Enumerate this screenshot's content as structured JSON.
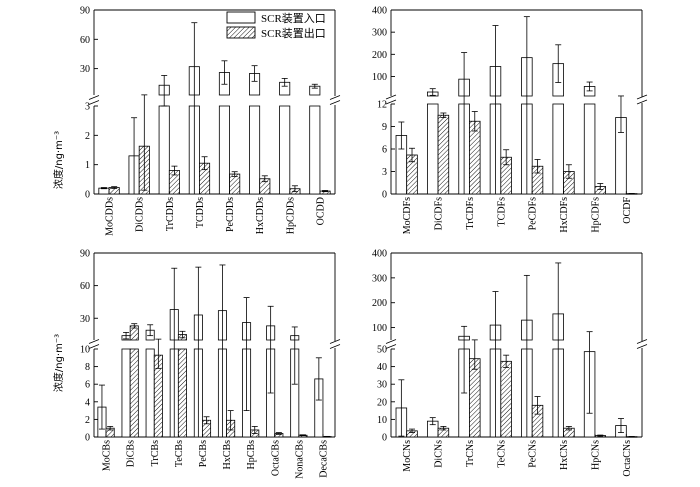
{
  "figure": {
    "ylabel": "浓度/ng·m⁻³",
    "colors": {
      "inlet_fill": "#ffffff",
      "outlet_hatch": "#000000",
      "axis": "#000000"
    }
  },
  "legend": {
    "inlet_label": "SCR装置入口",
    "outlet_label": "SCR装置出口"
  },
  "chart_data": [
    {
      "type": "bar",
      "panel": "top-left",
      "axis_break": true,
      "lower_ylim": [
        0,
        3
      ],
      "lower_ticks": [
        0,
        1,
        2,
        3
      ],
      "upper_ylim": [
        3,
        90
      ],
      "upper_ticks": [
        30,
        60,
        90
      ],
      "categories": [
        "MoCDDs",
        "DiCDDs",
        "TrCDDs",
        "TCDDs",
        "PeCDDs",
        "HxCDDs",
        "HpCDDs",
        "OCDD"
      ],
      "series": [
        {
          "name": "SCR装置入口",
          "values": [
            0.2,
            1.3,
            13,
            32,
            26,
            25,
            16,
            12
          ],
          "errors": [
            0.02,
            1.3,
            10,
            45,
            12,
            8,
            4,
            2
          ]
        },
        {
          "name": "SCR装置出口",
          "values": [
            0.22,
            1.63,
            0.8,
            1.05,
            0.68,
            0.52,
            0.18,
            0.1
          ],
          "errors": [
            0.03,
            1.5,
            0.15,
            0.22,
            0.08,
            0.1,
            0.1,
            0.02
          ]
        }
      ]
    },
    {
      "type": "bar",
      "panel": "top-right",
      "axis_break": true,
      "lower_ylim": [
        0,
        12
      ],
      "lower_ticks": [
        0,
        3,
        6,
        9,
        12
      ],
      "upper_ylim": [
        12,
        400
      ],
      "upper_ticks": [
        100,
        200,
        300,
        400
      ],
      "categories": [
        "MoCDFs",
        "DiCDFs",
        "TrCDFs",
        "TCDFs",
        "PeCDFs",
        "HxCDFs",
        "HpCDFs",
        "OCDF"
      ],
      "series": [
        {
          "name": "SCR装置入口",
          "values": [
            7.8,
            30,
            88,
            145,
            185,
            158,
            55,
            10.2
          ],
          "errors": [
            1.8,
            15,
            120,
            185,
            185,
            85,
            20,
            2
          ]
        },
        {
          "name": "SCR装置出口",
          "values": [
            5.2,
            10.5,
            9.7,
            4.9,
            3.7,
            3.0,
            1.0,
            0.05
          ],
          "errors": [
            0.9,
            0.3,
            1.3,
            1.0,
            0.9,
            0.9,
            0.4,
            0.02
          ]
        }
      ]
    },
    {
      "type": "bar",
      "panel": "bottom-left",
      "axis_break": true,
      "lower_ylim": [
        0,
        10
      ],
      "lower_ticks": [
        0,
        2,
        4,
        6,
        8,
        10
      ],
      "upper_ylim": [
        10,
        90
      ],
      "upper_ticks": [
        30,
        60,
        90
      ],
      "categories": [
        "MoCBs",
        "DiCBs",
        "TrCBs",
        "TeCBs",
        "PeCBs",
        "HxCBs",
        "HpCBs",
        "OctaCBs",
        "NonaCBs",
        "DecaCBs"
      ],
      "series": [
        {
          "name": "SCR装置入口",
          "values": [
            3.4,
            14,
            19,
            38,
            33,
            37,
            26,
            23,
            14,
            6.6
          ],
          "errors": [
            2.5,
            3,
            5,
            38,
            44,
            42,
            23,
            18,
            8,
            2.4
          ]
        },
        {
          "name": "SCR装置出口",
          "values": [
            1.0,
            23,
            9.3,
            15,
            1.9,
            1.9,
            0.8,
            0.4,
            0.2,
            0.05
          ],
          "errors": [
            0.2,
            2,
            1.5,
            3,
            0.4,
            1.1,
            0.4,
            0.1,
            0.05,
            0.02
          ]
        }
      ]
    },
    {
      "type": "bar",
      "panel": "bottom-right",
      "axis_break": true,
      "lower_ylim": [
        0,
        50
      ],
      "lower_ticks": [
        0,
        10,
        20,
        30,
        40,
        50
      ],
      "upper_ylim": [
        50,
        400
      ],
      "upper_ticks": [
        100,
        200,
        300,
        400
      ],
      "categories": [
        "MoCNs",
        "DiCNs",
        "TrCNs",
        "TeCNs",
        "PeCNs",
        "HxCNs",
        "HpCNs",
        "OctaCNs"
      ],
      "series": [
        {
          "name": "SCR装置入口",
          "values": [
            16.5,
            9,
            65,
            110,
            130,
            155,
            48.5,
            6.5
          ],
          "errors": [
            16,
            2,
            40,
            135,
            180,
            205,
            35,
            4
          ]
        },
        {
          "name": "SCR装置出口",
          "values": [
            3.5,
            5,
            44.5,
            43,
            18,
            5,
            0.8,
            0.2
          ],
          "errors": [
            1,
            1,
            6,
            3.5,
            5,
            1,
            0.3,
            0.1
          ]
        }
      ]
    }
  ]
}
